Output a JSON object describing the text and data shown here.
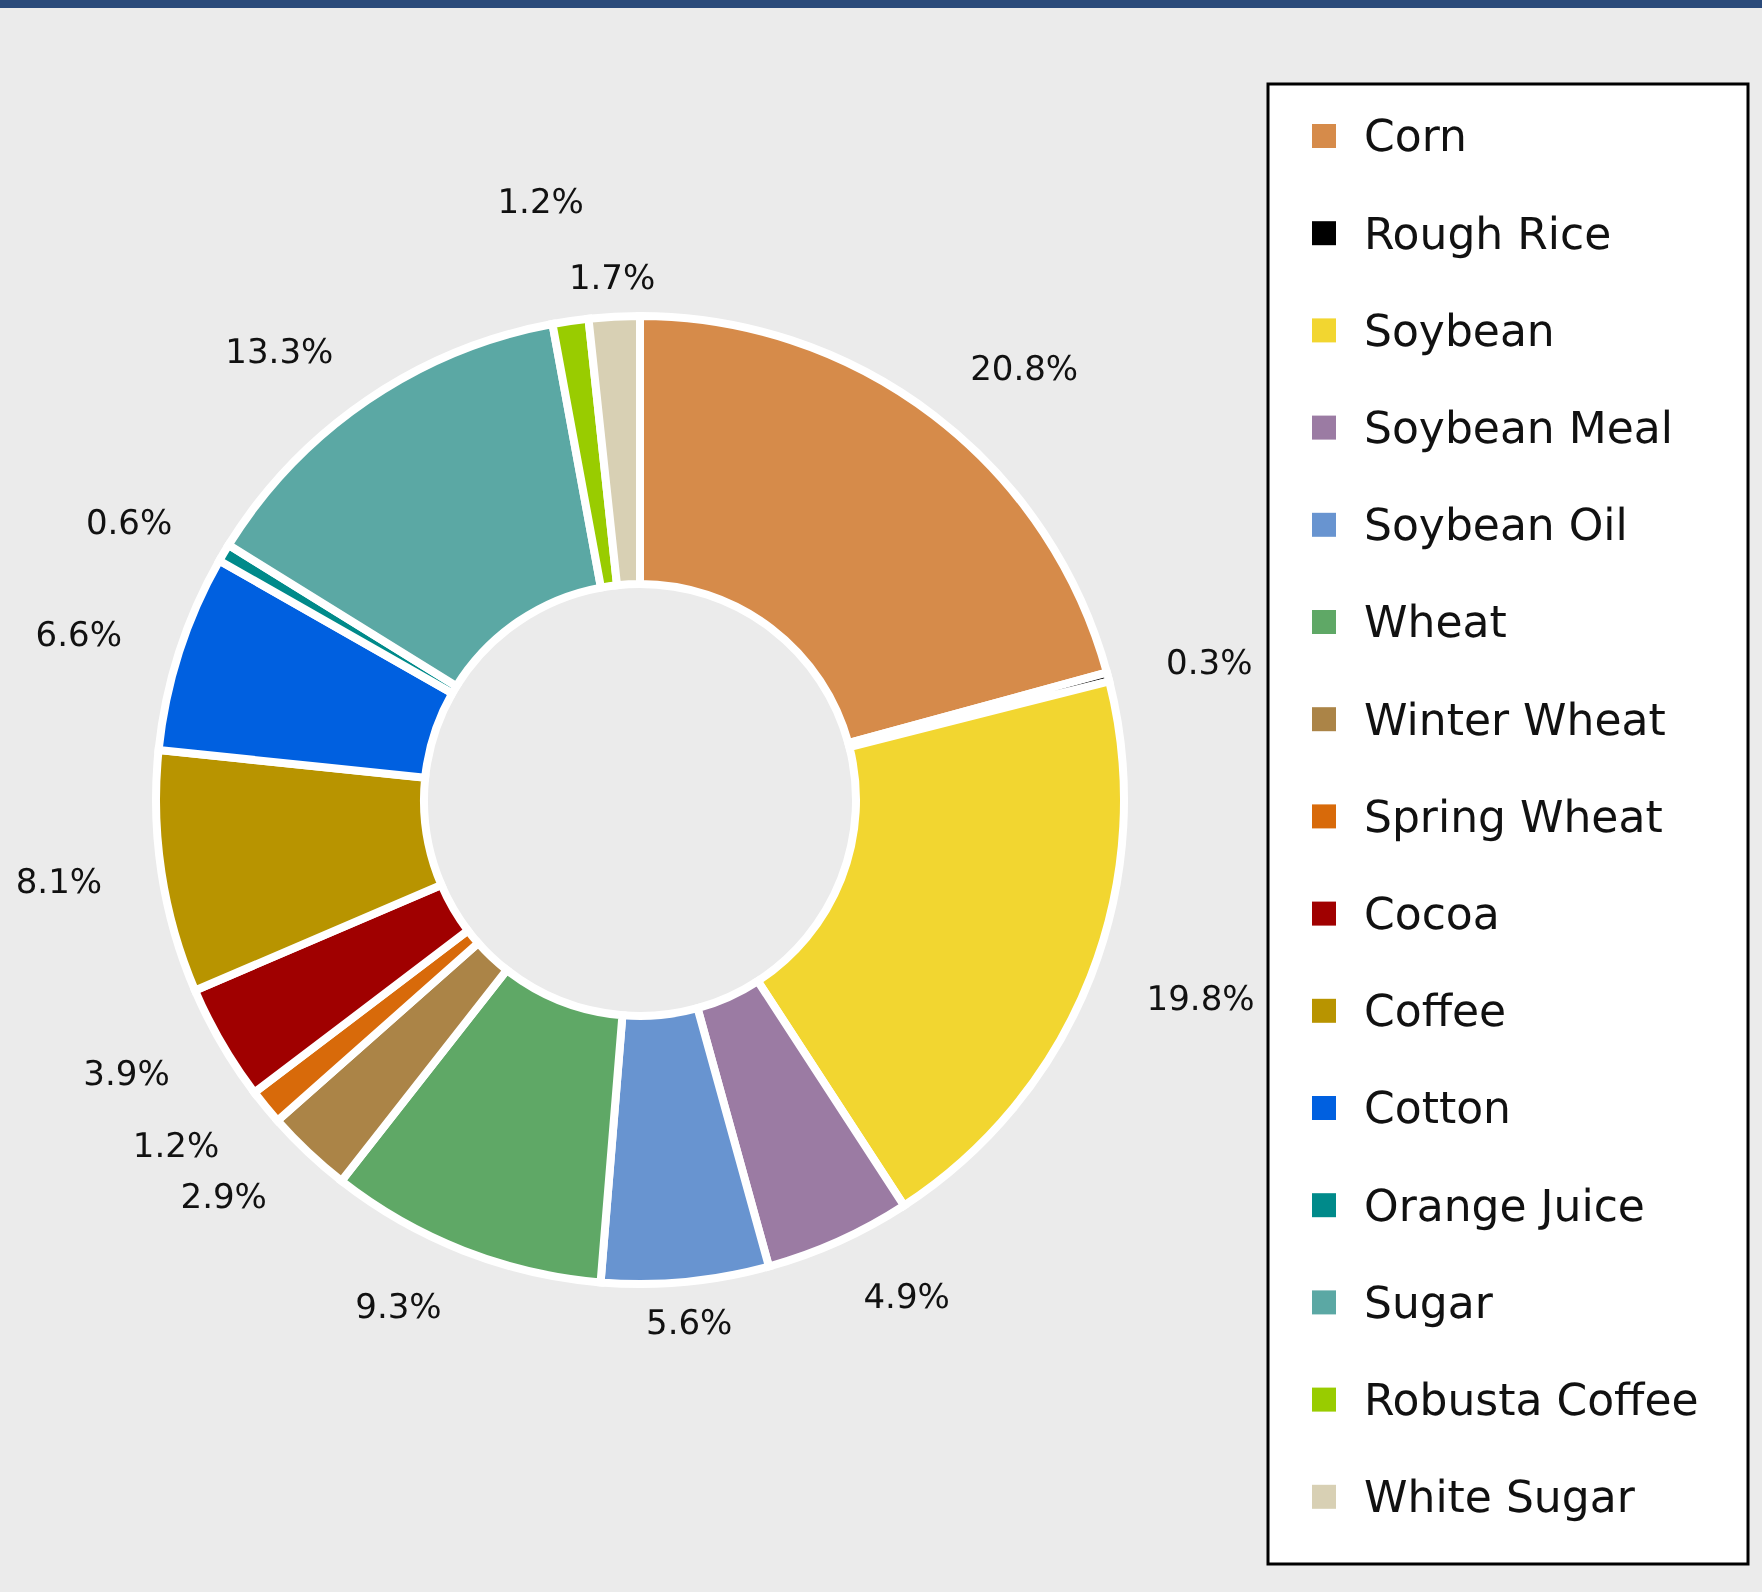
{
  "chart_data": {
    "type": "donut",
    "categories": [
      "Corn",
      "Rough Rice",
      "Soybean",
      "Soybean Meal",
      "Soybean Oil",
      "Wheat",
      "Winter Wheat",
      "Spring Wheat",
      "Cocoa",
      "Coffee",
      "Cotton",
      "Orange Juice",
      "Sugar",
      "Robusta Coffee",
      "White Sugar"
    ],
    "values": [
      20.8,
      0.3,
      19.8,
      4.9,
      5.6,
      9.3,
      2.9,
      1.2,
      3.9,
      8.1,
      6.6,
      0.6,
      13.3,
      1.2,
      1.7
    ],
    "value_labels": [
      "20.8%",
      "0.3%",
      "19.8%",
      "4.9%",
      "5.6%",
      "9.3%",
      "2.9%",
      "1.2%",
      "3.9%",
      "8.1%",
      "6.6%",
      "0.6%",
      "13.3%",
      "1.2%",
      "1.7%"
    ],
    "colors": [
      "#d68b4a",
      "#000000",
      "#f2d630",
      "#9b7ba3",
      "#6894d0",
      "#5fa866",
      "#ab8447",
      "#d86a0a",
      "#a00000",
      "#b89400",
      "#0060e0",
      "#008a8a",
      "#5ba8a4",
      "#99cc00",
      "#d8d0b4"
    ],
    "legend": "right"
  }
}
